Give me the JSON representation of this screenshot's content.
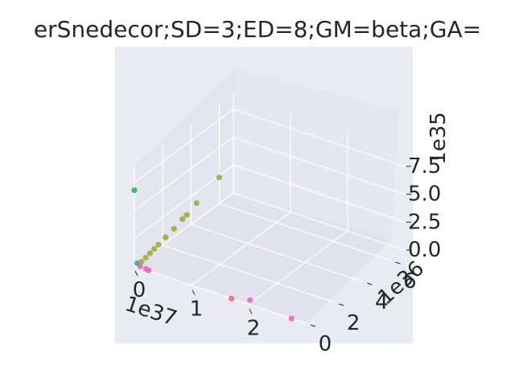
{
  "chart_data": {
    "type": "scatter",
    "title": "erSnedecor;SD=3;ED=8;GM=beta;GA=",
    "x_axis": {
      "ticks": [
        "0",
        "1",
        "2"
      ],
      "offset_label": "1e37"
    },
    "y_axis": {
      "ticks": [
        "0",
        "2",
        "4",
        "6"
      ],
      "offset_label": "1e36"
    },
    "z_axis": {
      "ticks": [
        "0.0",
        "2.5",
        "5.0",
        "7.5"
      ],
      "offset_label": "1e35"
    },
    "xlim": [
      0,
      3
    ],
    "ylim": [
      0,
      7
    ],
    "zlim": [
      0,
      9
    ],
    "grid": true,
    "points": [
      {
        "x": 0.0,
        "y": 0.0,
        "z": 6.8,
        "color": "#2eaa5a"
      },
      {
        "x": 0.05,
        "y": 0.0,
        "z": 0.35,
        "color": "#2ca7a0"
      },
      {
        "x": 0.1,
        "y": 0.0,
        "z": 0.15,
        "color": "#e85fc4"
      },
      {
        "x": 0.2,
        "y": 0.0,
        "z": 0.1,
        "color": "#e85fc4"
      },
      {
        "x": 0.25,
        "y": 0.0,
        "z": 0.05,
        "color": "#e85fc4"
      },
      {
        "x": 0.05,
        "y": 0.3,
        "z": 0.2,
        "color": "#9aa832"
      },
      {
        "x": 0.05,
        "y": 0.6,
        "z": 0.3,
        "color": "#9aa832"
      },
      {
        "x": 0.05,
        "y": 0.9,
        "z": 0.4,
        "color": "#9aa832"
      },
      {
        "x": 0.05,
        "y": 1.2,
        "z": 0.5,
        "color": "#9aa832"
      },
      {
        "x": 0.05,
        "y": 1.5,
        "z": 0.6,
        "color": "#9aa832"
      },
      {
        "x": 0.05,
        "y": 2.0,
        "z": 0.8,
        "color": "#9aa832"
      },
      {
        "x": 0.05,
        "y": 2.6,
        "z": 1.0,
        "color": "#9aa832"
      },
      {
        "x": 0.05,
        "y": 3.2,
        "z": 1.3,
        "color": "#9aa832"
      },
      {
        "x": 0.05,
        "y": 3.5,
        "z": 1.4,
        "color": "#9aa832"
      },
      {
        "x": 0.05,
        "y": 4.2,
        "z": 1.8,
        "color": "#9aa832"
      },
      {
        "x": 0.05,
        "y": 5.8,
        "z": 2.6,
        "color": "#9aa832"
      },
      {
        "x": 1.7,
        "y": 0.0,
        "z": 0.0,
        "color": "#e8657e"
      },
      {
        "x": 1.95,
        "y": 0.3,
        "z": 0.0,
        "color": "#e85fc4"
      },
      {
        "x": 2.75,
        "y": 0.0,
        "z": 0.0,
        "color": "#e85fc4"
      }
    ]
  }
}
